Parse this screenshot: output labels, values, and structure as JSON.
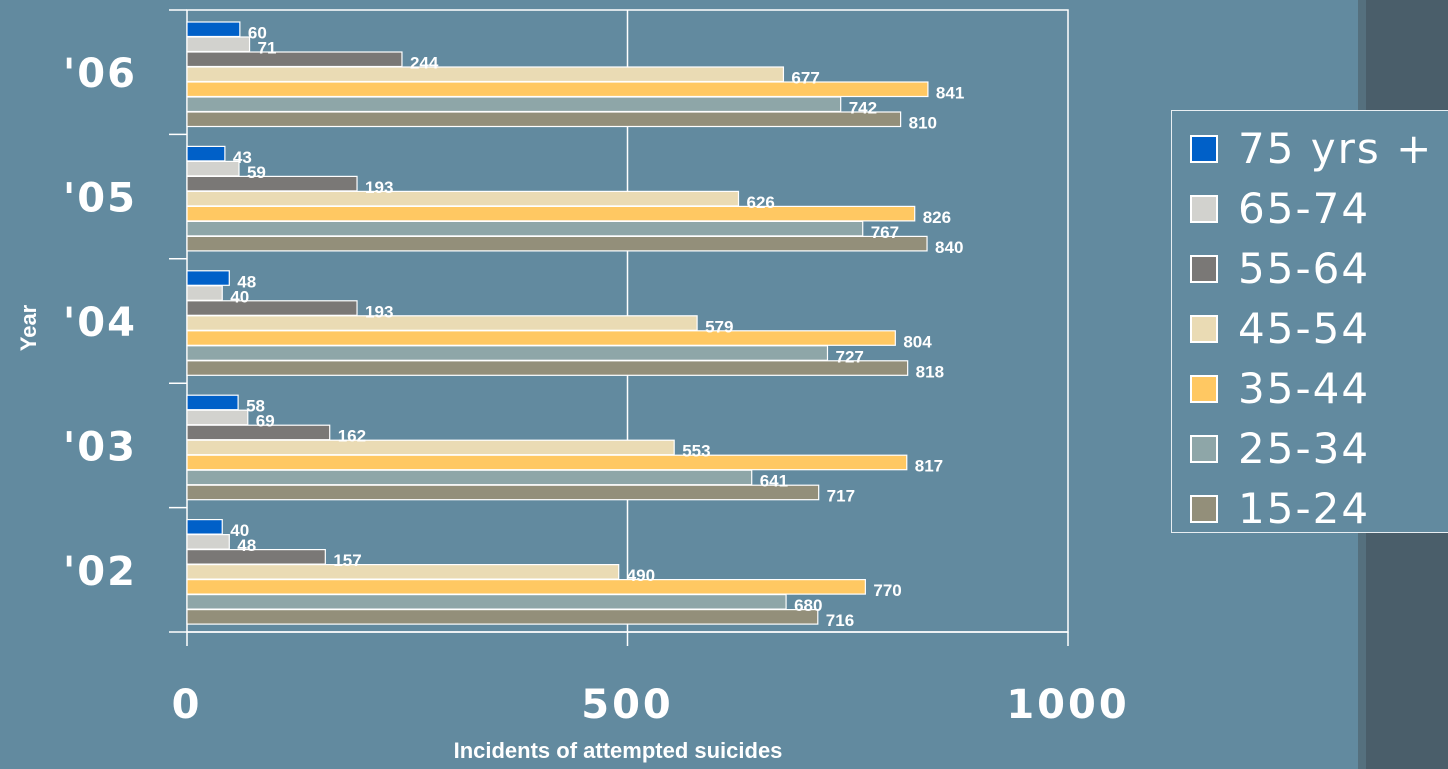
{
  "chart_data": {
    "type": "bar",
    "orientation": "horizontal",
    "categories": [
      "'06",
      "'05",
      "'04",
      "'03",
      "'02"
    ],
    "series": [
      {
        "name": "75 yrs +",
        "color": "#0060c8",
        "values": [
          60,
          43,
          48,
          58,
          40
        ]
      },
      {
        "name": "65-74",
        "color": "#d2d2ce",
        "values": [
          71,
          59,
          40,
          69,
          48
        ]
      },
      {
        "name": "55-64",
        "color": "#7a7876",
        "values": [
          244,
          193,
          193,
          162,
          157
        ]
      },
      {
        "name": "45-54",
        "color": "#eadbb4",
        "values": [
          677,
          626,
          579,
          553,
          490
        ]
      },
      {
        "name": "35-44",
        "color": "#ffc862",
        "values": [
          841,
          826,
          804,
          817,
          770
        ]
      },
      {
        "name": "25-34",
        "color": "#8ea6a8",
        "values": [
          742,
          767,
          727,
          641,
          680
        ]
      },
      {
        "name": "15-24",
        "color": "#938f7a",
        "values": [
          810,
          840,
          818,
          717,
          716
        ]
      }
    ],
    "xlabel": "Incidents of attempted suicides",
    "ylabel": "Year",
    "xlim": [
      0,
      1000
    ],
    "xticks": [
      "0",
      "500",
      "1000"
    ],
    "grid": "vertical",
    "legend_position": "right"
  }
}
